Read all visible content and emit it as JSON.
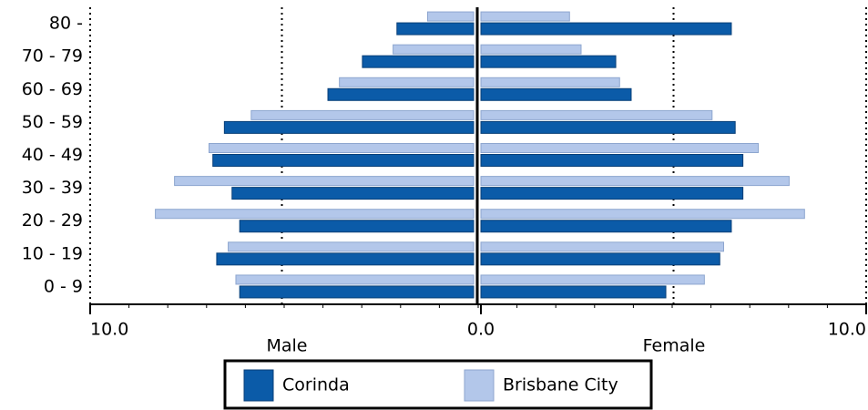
{
  "chart_data": {
    "type": "population-pyramid",
    "categories": [
      "0 - 9",
      "10 - 19",
      "20 - 29",
      "30 - 39",
      "40 - 49",
      "50 - 59",
      "60 - 69",
      "70 - 79",
      "80 -"
    ],
    "sides": [
      "Male",
      "Female"
    ],
    "series": [
      {
        "name": "Corinda",
        "color": "#0b5ba8",
        "male": [
          6.1,
          6.7,
          6.1,
          6.3,
          6.8,
          6.5,
          3.8,
          2.9,
          2.0
        ],
        "female": [
          4.8,
          6.2,
          6.5,
          6.8,
          6.8,
          6.6,
          3.9,
          3.5,
          6.5
        ]
      },
      {
        "name": "Brisbane City",
        "color": "#b3c7ea",
        "male": [
          6.2,
          6.4,
          8.3,
          7.8,
          6.9,
          5.8,
          3.5,
          2.1,
          1.2
        ],
        "female": [
          5.8,
          6.3,
          8.4,
          8.0,
          7.2,
          6.0,
          3.6,
          2.6,
          2.3
        ]
      }
    ],
    "xlim": [
      -10,
      10
    ],
    "xticks": [
      {
        "value": -10,
        "label": "10.0"
      },
      {
        "value": 0,
        "label": "0.0"
      },
      {
        "value": 10,
        "label": "10.0"
      }
    ],
    "xgrid": [
      -10,
      -5,
      5,
      10
    ]
  }
}
